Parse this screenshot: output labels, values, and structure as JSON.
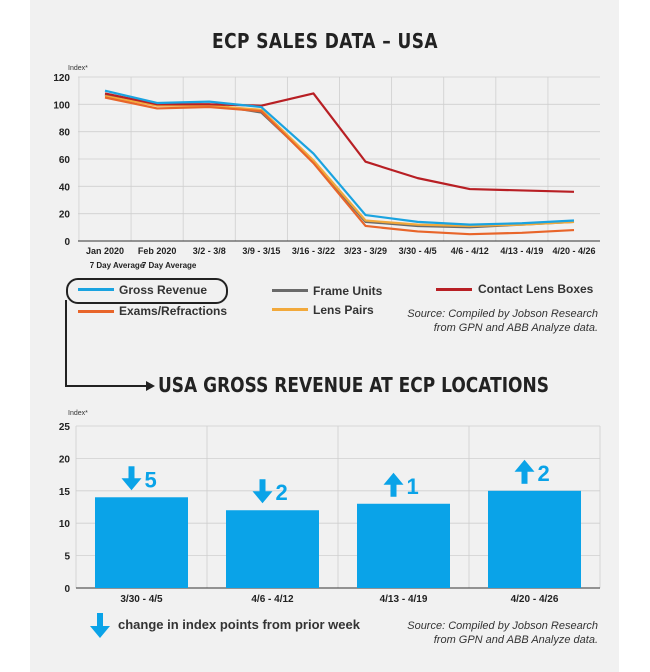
{
  "top_title": "ECP SALES DATA – USA",
  "bottom_title": "USA GROSS REVENUE AT ECP LOCATIONS",
  "source_line1": "Source: Compiled by Jobson Research",
  "source_line2": "from GPN and ABB Analyze data.",
  "arrow_legend_text": "change in index points from prior week",
  "colors": {
    "gross_revenue": "#1aa3e0",
    "exams": "#e8652a",
    "frame_units": "#6a6a6a",
    "lens_pairs": "#f2a93b",
    "contact_lens": "#b81f24",
    "bar": "#0aa3e8"
  },
  "chart_data": [
    {
      "type": "line",
      "title": "ECP SALES DATA – USA",
      "ylabel": "Index*",
      "ylim": [
        0,
        120
      ],
      "yticks": [
        0,
        20,
        40,
        60,
        80,
        100,
        120
      ],
      "categories": [
        "Jan 2020",
        "Feb 2020",
        "3/2 - 3/8",
        "3/9 - 3/15",
        "3/16 - 3/22",
        "3/23 - 3/29",
        "3/30 - 4/5",
        "4/6 - 4/12",
        "4/13 - 4/19",
        "4/20 - 4/26"
      ],
      "sublabels": [
        "7 Day Average",
        "7 Day Average",
        "",
        "",
        "",
        "",
        "",
        "",
        "",
        ""
      ],
      "grid": true,
      "series": [
        {
          "name": "Gross Revenue",
          "color_key": "gross_revenue",
          "values": [
            110,
            101,
            102,
            98,
            64,
            19,
            14,
            12,
            13,
            15
          ]
        },
        {
          "name": "Exams/Refractions",
          "color_key": "exams",
          "values": [
            105,
            97,
            98,
            95,
            57,
            11,
            7,
            5,
            6,
            8
          ]
        },
        {
          "name": "Frame Units",
          "color_key": "frame_units",
          "values": [
            107,
            100,
            100,
            94,
            58,
            14,
            11,
            10,
            12,
            14
          ]
        },
        {
          "name": "Lens Pairs",
          "color_key": "lens_pairs",
          "values": [
            106,
            99,
            99,
            96,
            59,
            15,
            12,
            11,
            12,
            14
          ]
        },
        {
          "name": "Contact Lens Boxes",
          "color_key": "contact_lens",
          "values": [
            108,
            100,
            100,
            99,
            108,
            58,
            46,
            38,
            37,
            36
          ]
        }
      ]
    },
    {
      "type": "bar",
      "title": "USA GROSS REVENUE AT ECP LOCATIONS",
      "ylabel": "Index*",
      "ylim": [
        0,
        25
      ],
      "yticks": [
        0,
        5,
        10,
        15,
        20,
        25
      ],
      "categories": [
        "3/30 - 4/5",
        "4/6 - 4/12",
        "4/13 - 4/19",
        "4/20 - 4/26"
      ],
      "values": [
        14,
        12,
        13,
        15
      ],
      "changes": [
        {
          "direction": "down",
          "label": "5"
        },
        {
          "direction": "down",
          "label": "2"
        },
        {
          "direction": "up",
          "label": "1"
        },
        {
          "direction": "up",
          "label": "2"
        }
      ],
      "grid": true
    }
  ]
}
